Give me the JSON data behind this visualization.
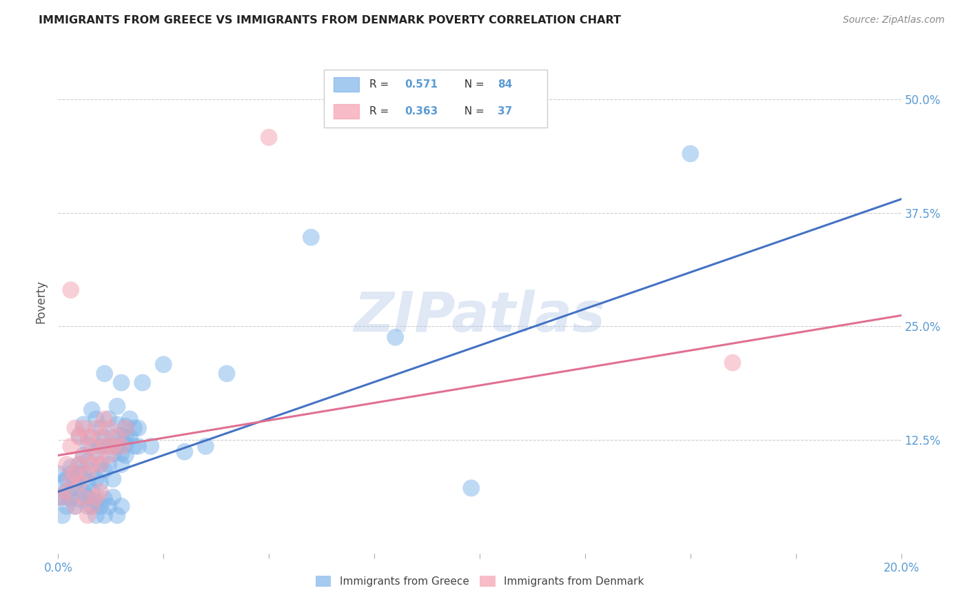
{
  "title": "IMMIGRANTS FROM GREECE VS IMMIGRANTS FROM DENMARK POVERTY CORRELATION CHART",
  "source": "Source: ZipAtlas.com",
  "ylabel": "Poverty",
  "xlim": [
    0.0,
    0.2
  ],
  "ylim": [
    0.0,
    0.555
  ],
  "yticks": [
    0.0,
    0.125,
    0.25,
    0.375,
    0.5
  ],
  "xticks": [
    0.0,
    0.025,
    0.05,
    0.075,
    0.1,
    0.125,
    0.15,
    0.175,
    0.2
  ],
  "ytick_labels": [
    "",
    "12.5%",
    "25.0%",
    "37.5%",
    "50.0%"
  ],
  "greece_color": "#7EB4EA",
  "denmark_color": "#F4A0B0",
  "greece_line_color": "#4472C4",
  "denmark_line_color": "#E07090",
  "greece_R": "0.571",
  "greece_N": "84",
  "denmark_R": "0.363",
  "denmark_N": "37",
  "legend_greece": "Immigrants from Greece",
  "legend_denmark": "Immigrants from Denmark",
  "watermark": "ZIPatlas",
  "background_color": "#FFFFFF",
  "grid_color": "#CCCCCC",
  "tick_label_color": "#5B9BD5",
  "greece_scatter": [
    [
      0.002,
      0.082
    ],
    [
      0.003,
      0.095
    ],
    [
      0.004,
      0.072
    ],
    [
      0.005,
      0.088
    ],
    [
      0.005,
      0.13
    ],
    [
      0.006,
      0.108
    ],
    [
      0.006,
      0.142
    ],
    [
      0.007,
      0.102
    ],
    [
      0.007,
      0.12
    ],
    [
      0.008,
      0.092
    ],
    [
      0.008,
      0.128
    ],
    [
      0.008,
      0.158
    ],
    [
      0.009,
      0.082
    ],
    [
      0.009,
      0.112
    ],
    [
      0.009,
      0.148
    ],
    [
      0.01,
      0.098
    ],
    [
      0.01,
      0.118
    ],
    [
      0.01,
      0.138
    ],
    [
      0.011,
      0.092
    ],
    [
      0.011,
      0.128
    ],
    [
      0.011,
      0.198
    ],
    [
      0.012,
      0.098
    ],
    [
      0.012,
      0.118
    ],
    [
      0.012,
      0.148
    ],
    [
      0.013,
      0.082
    ],
    [
      0.013,
      0.128
    ],
    [
      0.013,
      0.11
    ],
    [
      0.014,
      0.118
    ],
    [
      0.014,
      0.142
    ],
    [
      0.014,
      0.162
    ],
    [
      0.015,
      0.098
    ],
    [
      0.015,
      0.13
    ],
    [
      0.015,
      0.188
    ],
    [
      0.016,
      0.108
    ],
    [
      0.016,
      0.14
    ],
    [
      0.016,
      0.12
    ],
    [
      0.017,
      0.128
    ],
    [
      0.017,
      0.148
    ],
    [
      0.018,
      0.118
    ],
    [
      0.018,
      0.138
    ],
    [
      0.001,
      0.062
    ],
    [
      0.001,
      0.078
    ],
    [
      0.002,
      0.052
    ],
    [
      0.002,
      0.068
    ],
    [
      0.003,
      0.06
    ],
    [
      0.003,
      0.088
    ],
    [
      0.004,
      0.052
    ],
    [
      0.004,
      0.078
    ],
    [
      0.005,
      0.06
    ],
    [
      0.005,
      0.098
    ],
    [
      0.006,
      0.068
    ],
    [
      0.006,
      0.088
    ],
    [
      0.007,
      0.052
    ],
    [
      0.007,
      0.078
    ],
    [
      0.007,
      0.062
    ],
    [
      0.008,
      0.052
    ],
    [
      0.008,
      0.068
    ],
    [
      0.009,
      0.058
    ],
    [
      0.009,
      0.042
    ],
    [
      0.01,
      0.052
    ],
    [
      0.01,
      0.078
    ],
    [
      0.011,
      0.06
    ],
    [
      0.011,
      0.042
    ],
    [
      0.012,
      0.052
    ],
    [
      0.013,
      0.062
    ],
    [
      0.014,
      0.042
    ],
    [
      0.015,
      0.052
    ],
    [
      0.015,
      0.11
    ],
    [
      0.016,
      0.128
    ],
    [
      0.06,
      0.348
    ],
    [
      0.08,
      0.238
    ],
    [
      0.098,
      0.072
    ],
    [
      0.15,
      0.44
    ],
    [
      0.02,
      0.188
    ],
    [
      0.022,
      0.118
    ],
    [
      0.025,
      0.208
    ],
    [
      0.03,
      0.112
    ],
    [
      0.04,
      0.198
    ],
    [
      0.035,
      0.118
    ],
    [
      0.019,
      0.118
    ],
    [
      0.019,
      0.138
    ],
    [
      0.0,
      0.088
    ],
    [
      0.001,
      0.042
    ],
    [
      0.0,
      0.062
    ]
  ],
  "denmark_scatter": [
    [
      0.002,
      0.098
    ],
    [
      0.003,
      0.082
    ],
    [
      0.003,
      0.118
    ],
    [
      0.004,
      0.088
    ],
    [
      0.004,
      0.138
    ],
    [
      0.005,
      0.098
    ],
    [
      0.005,
      0.128
    ],
    [
      0.006,
      0.108
    ],
    [
      0.006,
      0.138
    ],
    [
      0.007,
      0.088
    ],
    [
      0.007,
      0.128
    ],
    [
      0.008,
      0.098
    ],
    [
      0.008,
      0.118
    ],
    [
      0.009,
      0.108
    ],
    [
      0.009,
      0.138
    ],
    [
      0.01,
      0.098
    ],
    [
      0.01,
      0.128
    ],
    [
      0.011,
      0.118
    ],
    [
      0.011,
      0.148
    ],
    [
      0.012,
      0.108
    ],
    [
      0.012,
      0.138
    ],
    [
      0.013,
      0.118
    ],
    [
      0.014,
      0.128
    ],
    [
      0.015,
      0.118
    ],
    [
      0.016,
      0.138
    ],
    [
      0.003,
      0.29
    ],
    [
      0.05,
      0.458
    ],
    [
      0.16,
      0.21
    ],
    [
      0.001,
      0.062
    ],
    [
      0.002,
      0.068
    ],
    [
      0.004,
      0.052
    ],
    [
      0.005,
      0.078
    ],
    [
      0.006,
      0.062
    ],
    [
      0.007,
      0.042
    ],
    [
      0.008,
      0.052
    ],
    [
      0.009,
      0.062
    ],
    [
      0.01,
      0.068
    ]
  ],
  "greece_line_x": [
    0.0,
    0.2
  ],
  "greece_line_y": [
    0.068,
    0.39
  ],
  "denmark_line_x": [
    0.0,
    0.2
  ],
  "denmark_line_y": [
    0.108,
    0.262
  ]
}
